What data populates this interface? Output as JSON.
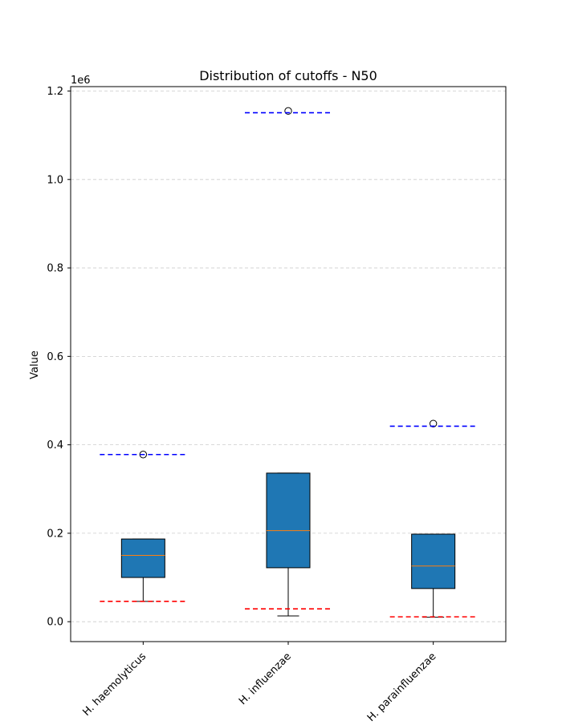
{
  "chart_data": {
    "type": "box",
    "title": "Distribution of cutoffs - N50",
    "xlabel": "",
    "ylabel": "Value",
    "offset_text": "1e6",
    "scale": 1000000,
    "ylim": [
      -45000,
      1210000
    ],
    "yticks": [
      0,
      200000,
      400000,
      600000,
      800000,
      1000000,
      1200000
    ],
    "ytick_labels": [
      "0.0",
      "0.2",
      "0.4",
      "0.6",
      "0.8",
      "1.0",
      "1.2"
    ],
    "grid": "y",
    "categories": [
      "H. haemolyticus",
      "H. influenzae",
      "H. parainfluenzae"
    ],
    "boxes": [
      {
        "q1": 100000,
        "median": 150000,
        "q3": 187000,
        "whisker_low": 46000,
        "whisker_high": 187000,
        "outliers": [
          378000
        ],
        "lower_cutoff": 46000,
        "upper_cutoff": 378000
      },
      {
        "q1": 122000,
        "median": 206000,
        "q3": 336000,
        "whisker_low": 13000,
        "whisker_high": 336000,
        "outliers": [
          1155000
        ],
        "lower_cutoff": 29000,
        "upper_cutoff": 1151000
      },
      {
        "q1": 75000,
        "median": 126000,
        "q3": 198000,
        "whisker_low": 10000,
        "whisker_high": 198000,
        "outliers": [
          448000
        ],
        "lower_cutoff": 11000,
        "upper_cutoff": 442000
      }
    ],
    "colors": {
      "box_fill": "#1f77b4",
      "median": "#ff7f0e",
      "lower_cutoff": "#ff0000",
      "upper_cutoff": "#0000ff",
      "grid": "#cccccc"
    }
  }
}
